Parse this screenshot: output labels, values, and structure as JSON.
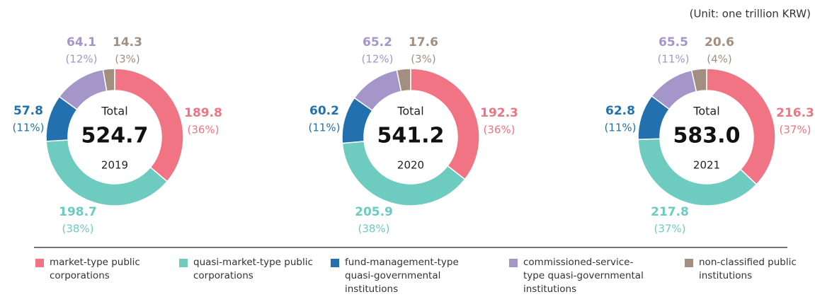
{
  "unit": "(Unit: one trillion KRW)",
  "legend": {
    "categories": [
      "market-type public corporations",
      "quasi-market-type public corporations",
      "fund-management-type quasi-governmental institutions",
      "commissioned-service-type quasi-governmental institutions",
      "non-classified public institutions"
    ],
    "colors": [
      "#f07483",
      "#6ecbbf",
      "#2271ae",
      "#a596c9",
      "#a38f82"
    ]
  },
  "chart_data": [
    {
      "type": "donut",
      "center_label": "Total",
      "total": 524.7,
      "year": "2019",
      "values": [
        189.8,
        198.7,
        57.8,
        64.1,
        14.3
      ],
      "percent_labels": [
        "(36%)",
        "(38%)",
        "(11%)",
        "(12%)",
        "(3%)"
      ]
    },
    {
      "type": "donut",
      "center_label": "Total",
      "total": 541.2,
      "year": "2020",
      "values": [
        192.3,
        205.9,
        60.2,
        65.2,
        17.6
      ],
      "percent_labels": [
        "(36%)",
        "(38%)",
        "(11%)",
        "(12%)",
        "(3%)"
      ]
    },
    {
      "type": "donut",
      "center_label": "Total",
      "total": 583.0,
      "total_label": "583.0",
      "year": "2021",
      "values": [
        216.3,
        217.8,
        62.8,
        65.5,
        20.6
      ],
      "percent_labels": [
        "(37%)",
        "(37%)",
        "(11%)",
        "(11%)",
        "(4%)"
      ]
    }
  ]
}
